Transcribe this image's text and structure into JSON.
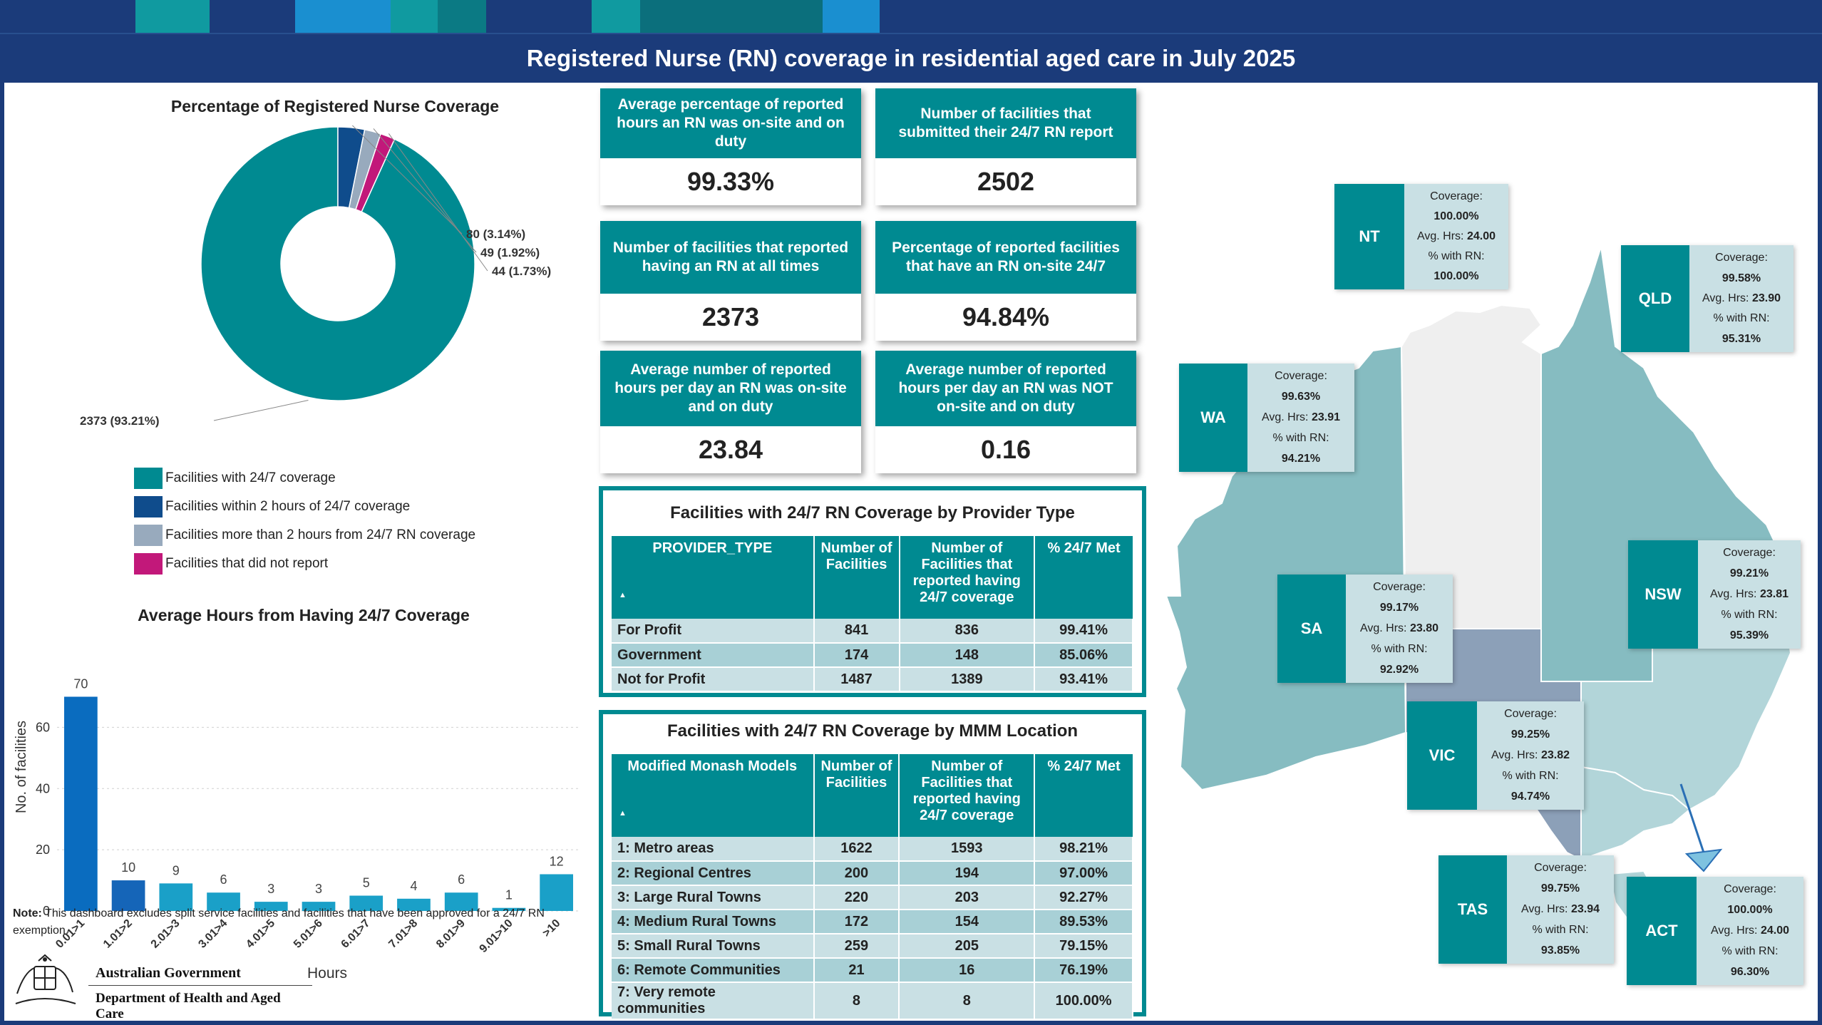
{
  "title": "Registered Nurse (RN) coverage in residential aged care in July 2025",
  "colors": {
    "teal": "#008a91",
    "navy": "#0f4c8c",
    "grey": "#98aabd",
    "magenta": "#c2187a",
    "bar_main": "#0a6cbf",
    "bar_alt": "#1aa0c8"
  },
  "donut": {
    "title": "Percentage of Registered Nurse Coverage",
    "labels": [
      "2373 (93.21%)",
      "80 (3.14%)",
      "49 (1.92%)",
      "44 (1.73%)"
    ],
    "legend": [
      "Facilities with 24/7 coverage",
      "Facilities within 2 hours of 24/7 coverage",
      "Facilities more than 2 hours from 24/7 RN coverage",
      "Facilities that did not report"
    ]
  },
  "kpis": [
    {
      "label": "Average percentage of reported hours an RN was on-site and on duty",
      "value": "99.33%"
    },
    {
      "label": "Number of facilities that submitted their 24/7 RN report",
      "value": "2502"
    },
    {
      "label": "Number of facilities that reported having an RN at all times",
      "value": "2373"
    },
    {
      "label": "Percentage of reported facilities that have an RN on-site 24/7",
      "value": "94.84%"
    },
    {
      "label": "Average number of reported hours per day an RN was on-site and on duty",
      "value": "23.84"
    },
    {
      "label": "Average number of reported hours per day an RN was NOT on-site and on duty",
      "value": "0.16"
    }
  ],
  "provider_table": {
    "title": "Facilities with 24/7 RN Coverage by Provider Type",
    "headers": [
      "PROVIDER_TYPE",
      "Number of Facilities",
      "Number of Facilities that reported having 24/7 coverage",
      "% 24/7 Met"
    ],
    "rows": [
      [
        "For Profit",
        "841",
        "836",
        "99.41%"
      ],
      [
        "Government",
        "174",
        "148",
        "85.06%"
      ],
      [
        "Not for Profit",
        "1487",
        "1389",
        "93.41%"
      ]
    ]
  },
  "mmm_table": {
    "title": "Facilities with 24/7 RN Coverage by MMM Location",
    "headers": [
      "Modified Monash Models",
      "Number of Facilities",
      "Number of Facilities that reported having 24/7 coverage",
      "% 24/7 Met"
    ],
    "rows": [
      [
        "1: Metro areas",
        "1622",
        "1593",
        "98.21%"
      ],
      [
        "2: Regional Centres",
        "200",
        "194",
        "97.00%"
      ],
      [
        "3: Large Rural Towns",
        "220",
        "203",
        "92.27%"
      ],
      [
        "4: Medium Rural Towns",
        "172",
        "154",
        "89.53%"
      ],
      [
        "5: Small Rural Towns",
        "259",
        "205",
        "79.15%"
      ],
      [
        "6: Remote Communities",
        "21",
        "16",
        "76.19%"
      ],
      [
        "7: Very remote communities",
        "8",
        "8",
        "100.00%"
      ]
    ]
  },
  "chart_data": [
    {
      "type": "pie",
      "title": "Percentage of Registered Nurse Coverage",
      "categories": [
        "Facilities with 24/7 coverage",
        "Facilities within 2 hours of 24/7 coverage",
        "Facilities more than 2 hours from 24/7 RN coverage",
        "Facilities that did not report"
      ],
      "values": [
        2373,
        80,
        49,
        44
      ],
      "percentages": [
        93.21,
        3.14,
        1.92,
        1.73
      ],
      "legend_position": "bottom"
    },
    {
      "type": "bar",
      "title": "Average Hours from Having 24/7 Coverage",
      "xlabel": "Hours",
      "ylabel": "No. of facilities",
      "categories": [
        "0.01>1",
        "1.01>2",
        "2.01>3",
        "3.01>4",
        "4.01>5",
        "5.01>6",
        "6.01>7",
        "7.01>8",
        "8.01>9",
        "9.01>10",
        ">10"
      ],
      "values": [
        70,
        10,
        9,
        6,
        3,
        3,
        5,
        4,
        6,
        1,
        12
      ],
      "yticks": [
        0,
        20,
        40,
        60
      ],
      "ylim": [
        0,
        75
      ],
      "grid": true
    }
  ],
  "note": {
    "bold": "Note:",
    "text": " This dashboard excludes split service facilities and facilities that have been approved for a 24/7 RN exemption."
  },
  "logo": {
    "line1": "Australian Government",
    "line2": "Department of Health and Aged Care"
  },
  "states": [
    {
      "code": "NT",
      "coverage_label": "Coverage:",
      "coverage": "100.00%",
      "hrs_label": "Avg. Hrs:",
      "hrs": "24.00",
      "rn_label": "% with RN:",
      "rn": "100.00%"
    },
    {
      "code": "QLD",
      "coverage_label": "Coverage:",
      "coverage": "99.58%",
      "hrs_label": "Avg. Hrs:",
      "hrs": "23.90",
      "rn_label": "% with RN:",
      "rn": "95.31%"
    },
    {
      "code": "WA",
      "coverage_label": "Coverage:",
      "coverage": "99.63%",
      "hrs_label": "Avg. Hrs:",
      "hrs": "23.91",
      "rn_label": "% with RN:",
      "rn": "94.21%"
    },
    {
      "code": "NSW",
      "coverage_label": "Coverage:",
      "coverage": "99.21%",
      "hrs_label": "Avg. Hrs:",
      "hrs": "23.81",
      "rn_label": "% with RN:",
      "rn": "95.39%"
    },
    {
      "code": "SA",
      "coverage_label": "Coverage:",
      "coverage": "99.17%",
      "hrs_label": "Avg. Hrs:",
      "hrs": "23.80",
      "rn_label": "% with RN:",
      "rn": "92.92%"
    },
    {
      "code": "VIC",
      "coverage_label": "Coverage:",
      "coverage": "99.25%",
      "hrs_label": "Avg. Hrs:",
      "hrs": "23.82",
      "rn_label": "% with RN:",
      "rn": "94.74%"
    },
    {
      "code": "TAS",
      "coverage_label": "Coverage:",
      "coverage": "99.75%",
      "hrs_label": "Avg. Hrs:",
      "hrs": "23.94",
      "rn_label": "% with RN:",
      "rn": "93.85%"
    },
    {
      "code": "ACT",
      "coverage_label": "Coverage:",
      "coverage": "100.00%",
      "hrs_label": "Avg. Hrs:",
      "hrs": "24.00",
      "rn_label": "% with RN:",
      "rn": "96.30%"
    }
  ]
}
